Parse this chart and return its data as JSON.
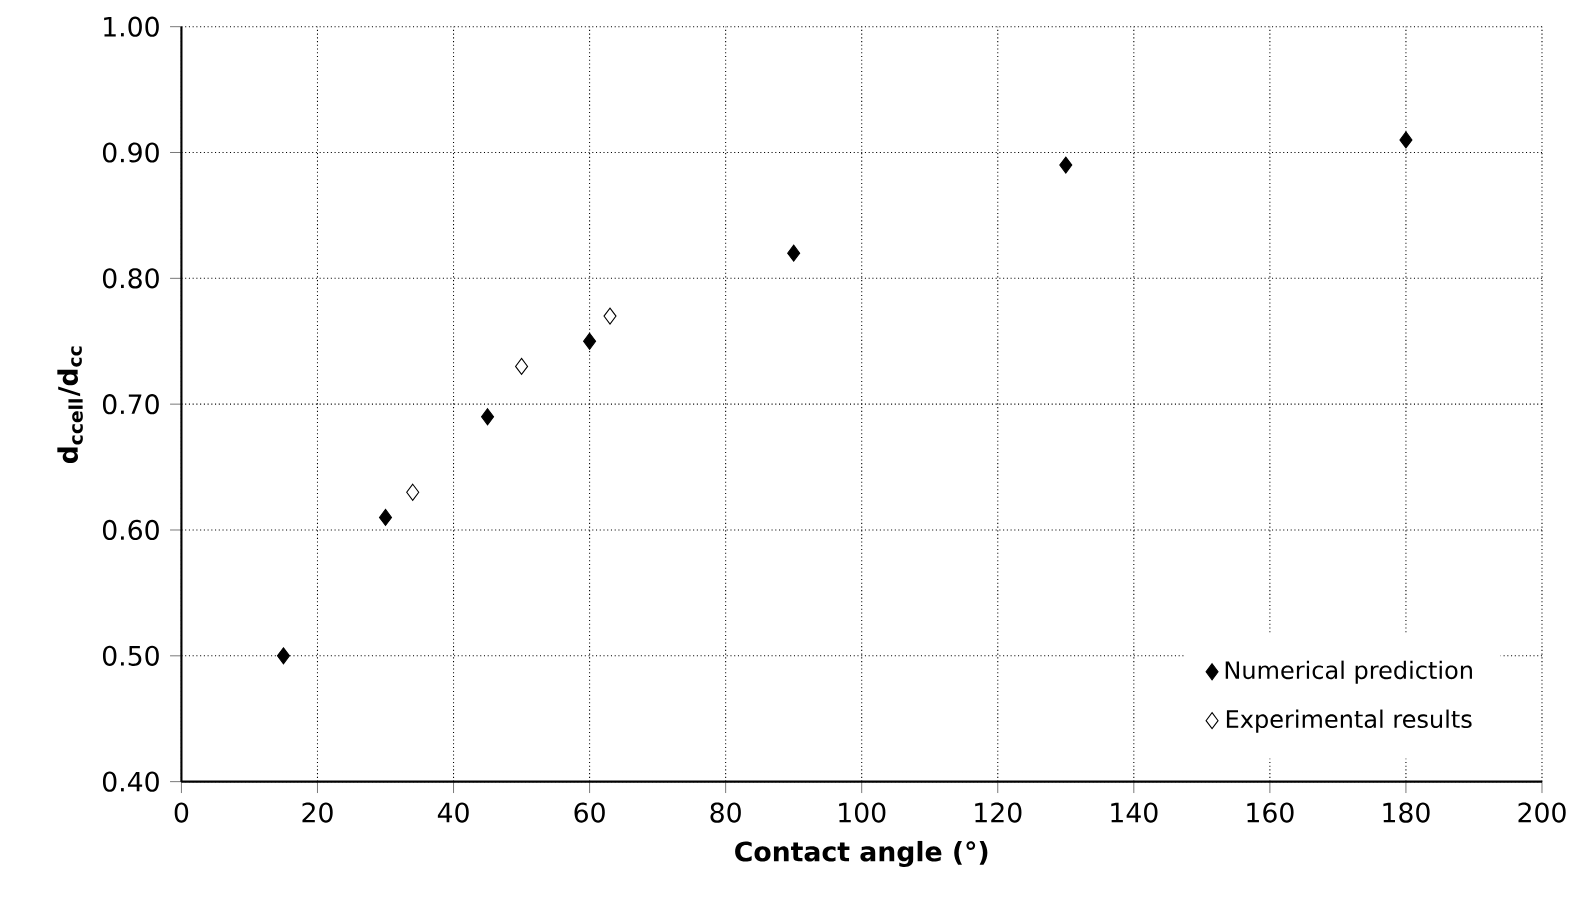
{
  "chart_data": {
    "type": "scatter",
    "xlabel": "Contact angle (°)",
    "ylabel": "d$_{ccell}$/d$_{cc}$",
    "xlim": [
      0,
      200
    ],
    "xticks": [
      0,
      20,
      40,
      60,
      80,
      100,
      120,
      140,
      160,
      180,
      200
    ],
    "ylim": [
      0.4,
      1.0
    ],
    "yticks": [
      {
        "value": 0.4,
        "label": "0.40"
      },
      {
        "value": 0.5,
        "label": "0.50"
      },
      {
        "value": 0.6,
        "label": "0.60"
      },
      {
        "value": 0.7,
        "label": "0.70"
      },
      {
        "value": 0.8,
        "label": "0.80"
      },
      {
        "value": 0.9,
        "label": "0.90"
      },
      {
        "value": 1.0,
        "label": "1.00"
      }
    ],
    "grid": true,
    "legend": "bottom right",
    "series": [
      {
        "name": "Numerical prediction",
        "color": "#000000",
        "marker": "diamond",
        "x": [
          15,
          30,
          45,
          60,
          90,
          130,
          180
        ],
        "values": [
          0.5,
          0.61,
          0.69,
          0.75,
          0.82,
          0.89,
          0.91
        ]
      },
      {
        "name": "Experimental results",
        "color": "#000000",
        "marker": "diamond*open",
        "x": [
          34,
          50,
          63
        ],
        "values": [
          0.63,
          0.73,
          0.77
        ]
      }
    ]
  }
}
